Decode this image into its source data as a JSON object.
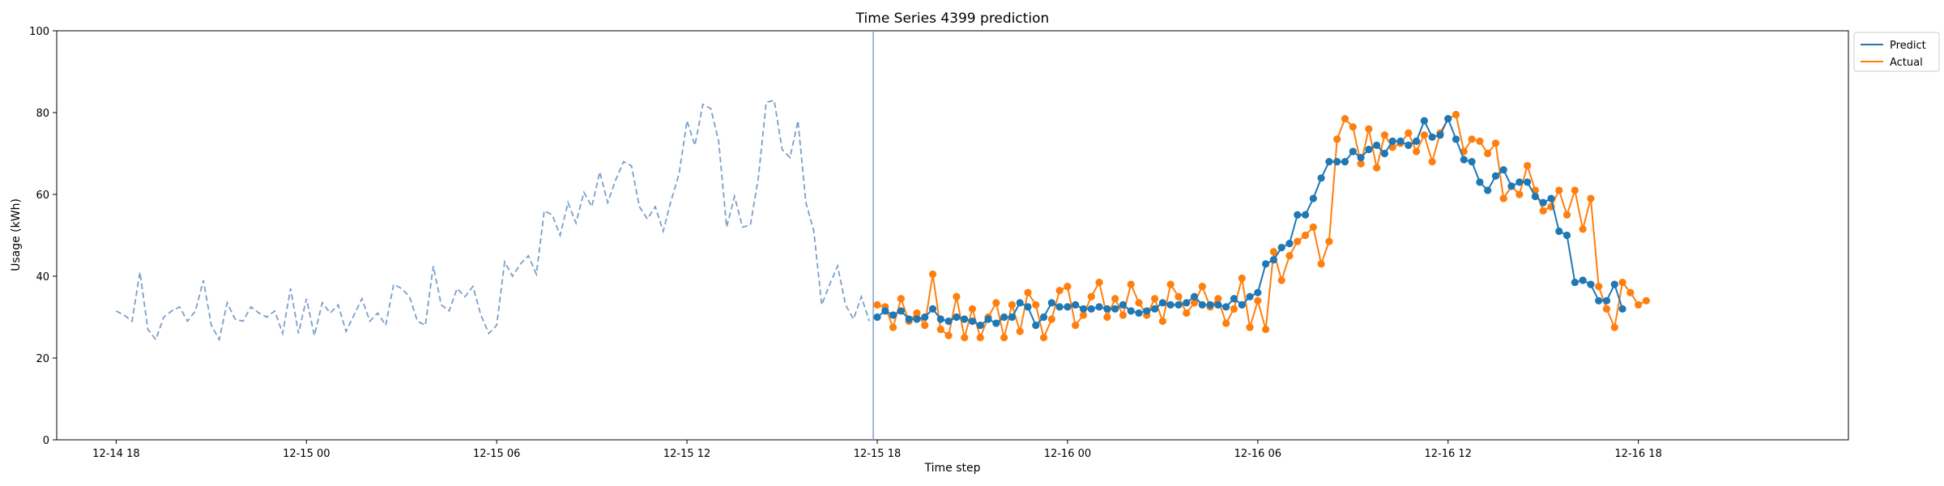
{
  "chart_data": {
    "type": "line",
    "title": "Time Series 4399 prediction",
    "xlabel": "Time step",
    "ylabel": "Usage (kWh)",
    "ylim": [
      0,
      100
    ],
    "yticks": [
      0,
      20,
      40,
      60,
      80,
      100
    ],
    "xlim": [
      -7.5,
      218.5
    ],
    "x_ticks": [
      {
        "x": 0,
        "label": "12-14 18"
      },
      {
        "x": 24,
        "label": "12-15 00"
      },
      {
        "x": 48,
        "label": "12-15 06"
      },
      {
        "x": 72,
        "label": "12-15 12"
      },
      {
        "x": 96,
        "label": "12-15 18"
      },
      {
        "x": 120,
        "label": "12-16 00"
      },
      {
        "x": 144,
        "label": "12-16 06"
      },
      {
        "x": 168,
        "label": "12-16 12"
      },
      {
        "x": 192,
        "label": "12-16 18"
      }
    ],
    "x_start": "12-14 20:00",
    "x_step": "hourly",
    "forecast_start_label": "12-15 19:00",
    "legend": {
      "position": "upper-right"
    },
    "history": {
      "style": "dashed",
      "color": "#7b9fc9",
      "values": [
        31.5,
        30.5,
        29,
        41,
        27,
        24.5,
        30,
        31.5,
        32.5,
        29,
        31.5,
        39,
        28,
        24.5,
        33.5,
        29.5,
        29,
        32.5,
        31,
        30,
        31.5,
        26,
        37,
        26,
        34.5,
        25.5,
        33.5,
        31,
        33,
        26.5,
        30.5,
        34.5,
        29,
        31,
        28,
        38,
        37,
        35,
        29,
        28,
        42.5,
        33,
        31.5,
        37,
        35,
        37.5,
        30.5,
        26,
        28,
        43.5,
        40,
        43,
        45,
        40.5,
        56,
        55,
        50,
        58,
        53,
        60.5,
        57,
        65.5,
        58,
        63.5,
        68,
        67,
        57,
        54,
        57,
        51,
        58.5,
        65,
        78,
        72,
        82,
        81,
        73,
        52,
        59.5,
        52,
        52.5,
        64,
        82.5,
        83,
        71,
        69,
        78,
        58,
        51,
        33,
        38,
        42.5,
        33,
        29.5,
        35,
        29
      ]
    },
    "forecast_marker": {
      "color": "#7b9fc9"
    },
    "series": [
      {
        "name": "Predict",
        "color": "#1f77b4",
        "values": [
          30,
          31.5,
          30.5,
          31.5,
          29.5,
          29.5,
          30,
          32,
          29.5,
          29,
          30,
          29.5,
          29,
          28,
          29.5,
          28.5,
          30,
          30,
          33.5,
          32.5,
          28,
          30,
          33.5,
          32.5,
          32.5,
          33,
          32,
          32,
          32.5,
          32,
          32,
          33,
          31.5,
          31,
          31.5,
          32,
          33.5,
          33,
          33,
          33.5,
          35,
          33,
          33,
          33,
          32.5,
          34.5,
          33,
          35,
          36,
          43,
          44,
          47,
          48,
          55,
          55,
          59,
          64,
          68,
          68,
          68,
          70.5,
          69,
          71,
          72,
          70,
          73,
          73,
          72,
          73,
          78,
          74,
          74.5,
          78.5,
          73.5,
          68.5,
          68,
          63,
          61,
          64.5,
          66,
          62,
          63,
          63,
          59.5,
          58,
          59,
          51,
          50,
          38.5,
          39,
          38,
          34,
          34,
          38,
          32
        ]
      },
      {
        "name": "Actual",
        "color": "#ff7f0e",
        "values": [
          33,
          32.5,
          27.5,
          34.5,
          29,
          31,
          28,
          40.5,
          27,
          25.5,
          35,
          25,
          32,
          25,
          30,
          33.5,
          25,
          33,
          26.5,
          36,
          33,
          25,
          29.5,
          36.5,
          37.5,
          28,
          30.5,
          35,
          38.5,
          30,
          34.5,
          30.5,
          38,
          33.5,
          30.5,
          34.5,
          29,
          38,
          35,
          31,
          33.5,
          37.5,
          32.5,
          34.5,
          28.5,
          32,
          39.5,
          27.5,
          34,
          27,
          46,
          39,
          45,
          48.5,
          50,
          52,
          43,
          48.5,
          73.5,
          78.5,
          76.5,
          67.5,
          76,
          66.5,
          74.5,
          71.5,
          72.5,
          75,
          70.5,
          74.5,
          68,
          75,
          78.5,
          79.5,
          70.5,
          73.5,
          73,
          70,
          72.5,
          59,
          62,
          60,
          67,
          61,
          56,
          57,
          61,
          55,
          61,
          51.5,
          59,
          37.5,
          32,
          27.5,
          38.5,
          36,
          33,
          34
        ]
      }
    ]
  }
}
